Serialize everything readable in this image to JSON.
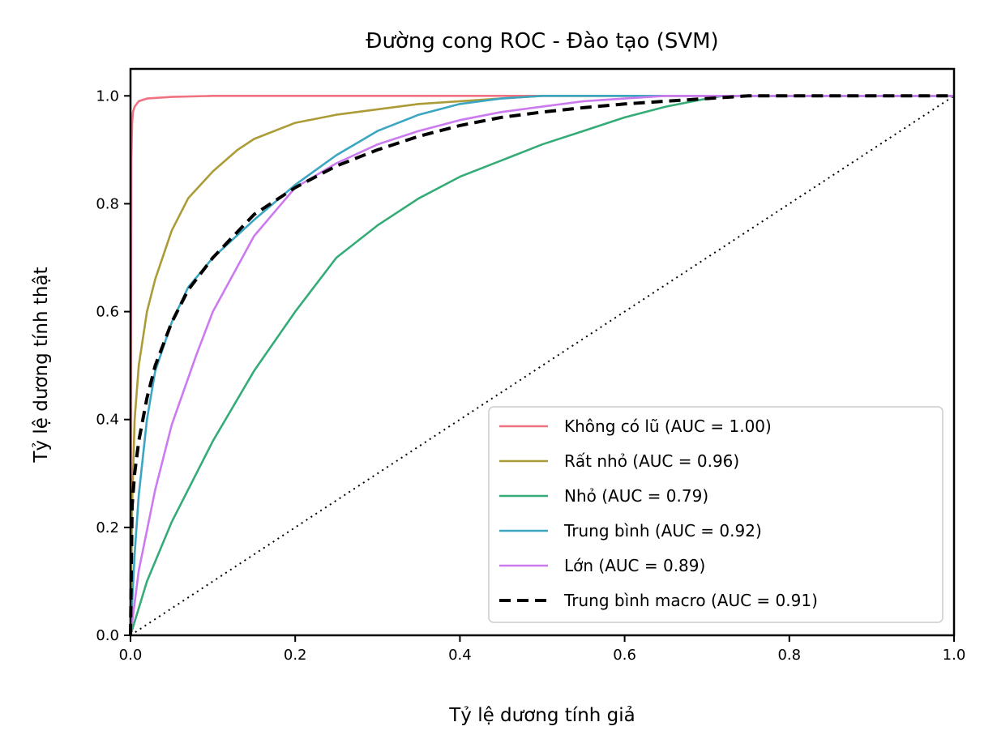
{
  "chart_data": {
    "type": "line",
    "title": "Đường cong ROC - Đào tạo (SVM)",
    "xlabel": "Tỷ lệ dương tính giả",
    "ylabel": "Tỷ lệ dương tính thật",
    "xlim": [
      0,
      1
    ],
    "ylim": [
      0,
      1.05
    ],
    "x_ticks": [
      "0.0",
      "0.2",
      "0.4",
      "0.6",
      "0.8",
      "1.0"
    ],
    "y_ticks": [
      "0.0",
      "0.2",
      "0.4",
      "0.6",
      "0.8",
      "1.0"
    ],
    "grid": false,
    "legend_position": "lower-right",
    "diagonal_reference": true,
    "series": [
      {
        "name": "Không có lũ (AUC = 1.00)",
        "color": "#f0717f",
        "style": "solid",
        "x": [
          0,
          0.001,
          0.002,
          0.003,
          0.005,
          0.01,
          0.02,
          0.05,
          0.1,
          0.2,
          0.4,
          0.6,
          0.8,
          1.0
        ],
        "y": [
          0,
          0.88,
          0.95,
          0.97,
          0.98,
          0.99,
          0.995,
          0.998,
          1.0,
          1.0,
          1.0,
          1.0,
          1.0,
          1.0
        ]
      },
      {
        "name": "Rất nhỏ (AUC = 0.96)",
        "color": "#ab9c37",
        "style": "solid",
        "x": [
          0,
          0.002,
          0.005,
          0.01,
          0.02,
          0.03,
          0.05,
          0.07,
          0.1,
          0.13,
          0.15,
          0.2,
          0.25,
          0.3,
          0.35,
          0.4,
          0.45,
          0.5,
          0.6,
          0.8,
          1.0
        ],
        "y": [
          0,
          0.24,
          0.4,
          0.5,
          0.6,
          0.66,
          0.75,
          0.81,
          0.86,
          0.9,
          0.92,
          0.95,
          0.965,
          0.975,
          0.985,
          0.99,
          0.995,
          1.0,
          1.0,
          1.0,
          1.0
        ]
      },
      {
        "name": "Nhỏ (AUC = 0.79)",
        "color": "#35ac77",
        "style": "solid",
        "x": [
          0,
          0.02,
          0.05,
          0.1,
          0.15,
          0.2,
          0.25,
          0.3,
          0.35,
          0.4,
          0.45,
          0.5,
          0.55,
          0.6,
          0.65,
          0.7,
          0.72,
          0.75,
          0.8,
          1.0
        ],
        "y": [
          0,
          0.1,
          0.21,
          0.36,
          0.49,
          0.6,
          0.7,
          0.76,
          0.81,
          0.85,
          0.88,
          0.91,
          0.935,
          0.96,
          0.98,
          0.995,
          1.0,
          1.0,
          1.0,
          1.0
        ]
      },
      {
        "name": "Trung bình (AUC = 0.92)",
        "color": "#3aa6c2",
        "style": "solid",
        "x": [
          0,
          0.005,
          0.01,
          0.02,
          0.03,
          0.05,
          0.07,
          0.1,
          0.15,
          0.2,
          0.25,
          0.3,
          0.35,
          0.4,
          0.45,
          0.5,
          0.55,
          0.6,
          0.8,
          1.0
        ],
        "y": [
          0,
          0.15,
          0.26,
          0.4,
          0.49,
          0.58,
          0.645,
          0.7,
          0.77,
          0.835,
          0.89,
          0.935,
          0.965,
          0.985,
          0.995,
          1.0,
          1.0,
          1.0,
          1.0,
          1.0
        ]
      },
      {
        "name": "Lớn (AUC = 0.89)",
        "color": "#cb7af0",
        "style": "solid",
        "x": [
          0,
          0.01,
          0.03,
          0.05,
          0.08,
          0.1,
          0.15,
          0.2,
          0.25,
          0.3,
          0.35,
          0.4,
          0.45,
          0.5,
          0.55,
          0.6,
          0.65,
          0.7,
          0.8,
          1.0
        ],
        "y": [
          0,
          0.12,
          0.27,
          0.39,
          0.52,
          0.6,
          0.74,
          0.83,
          0.875,
          0.91,
          0.935,
          0.955,
          0.97,
          0.98,
          0.99,
          0.995,
          1.0,
          1.0,
          1.0,
          1.0
        ]
      },
      {
        "name": "Trung bình macro (AUC = 0.91)",
        "color": "#000000",
        "style": "dashed",
        "x": [
          0,
          0.002,
          0.005,
          0.01,
          0.02,
          0.03,
          0.05,
          0.07,
          0.1,
          0.15,
          0.2,
          0.25,
          0.3,
          0.35,
          0.4,
          0.45,
          0.5,
          0.55,
          0.6,
          0.65,
          0.7,
          0.75,
          0.8,
          1.0
        ],
        "y": [
          0,
          0.24,
          0.3,
          0.36,
          0.44,
          0.5,
          0.58,
          0.64,
          0.7,
          0.78,
          0.83,
          0.87,
          0.9,
          0.925,
          0.945,
          0.96,
          0.97,
          0.978,
          0.985,
          0.99,
          0.995,
          1.0,
          1.0,
          1.0
        ]
      }
    ]
  }
}
